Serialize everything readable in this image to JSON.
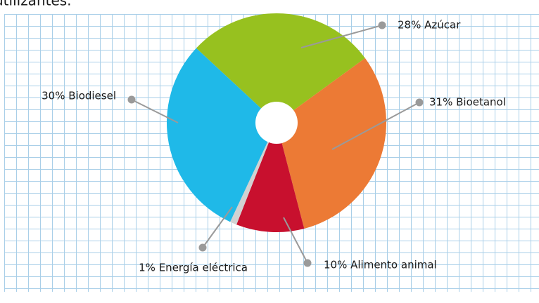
{
  "chart_data": {
    "type": "pie",
    "subtitle": "utilizantes.",
    "categories": [
      "28% Azúcar",
      "31% Bioetanol",
      "10% Alimento animal",
      "1% Energía eléctrica",
      "30% Biodiesel"
    ],
    "values": [
      28,
      31,
      10,
      1,
      30
    ],
    "colors": [
      "#97c11f",
      "#ec7a35",
      "#c8102e",
      "#d2d2d2",
      "#1fb9e8"
    ]
  }
}
